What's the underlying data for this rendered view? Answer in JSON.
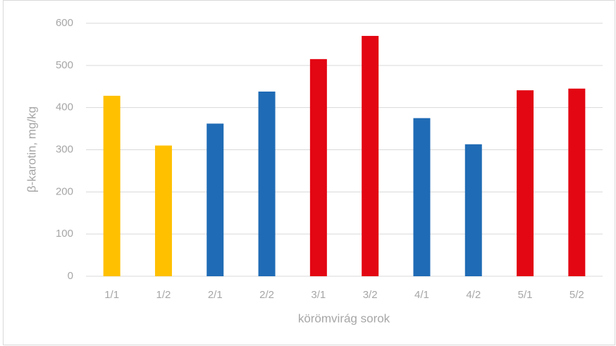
{
  "chart_data": {
    "type": "bar",
    "x_label": "körömvirág sorok",
    "y_label": "β-karotin, mg/kg",
    "categories": [
      "1/1",
      "1/2",
      "2/1",
      "2/2",
      "3/1",
      "3/2",
      "4/1",
      "4/2",
      "5/1",
      "5/2"
    ],
    "values": [
      428,
      310,
      362,
      438,
      515,
      570,
      375,
      313,
      441,
      445
    ],
    "colors": [
      "#ffc000",
      "#ffc000",
      "#1f6bb5",
      "#1f6bb5",
      "#e30613",
      "#e30613",
      "#1f6bb5",
      "#1f6bb5",
      "#e30613",
      "#e30613"
    ],
    "ylim": [
      0,
      600
    ],
    "yticks": [
      0,
      100,
      200,
      300,
      400,
      500,
      600
    ],
    "grid": true
  }
}
